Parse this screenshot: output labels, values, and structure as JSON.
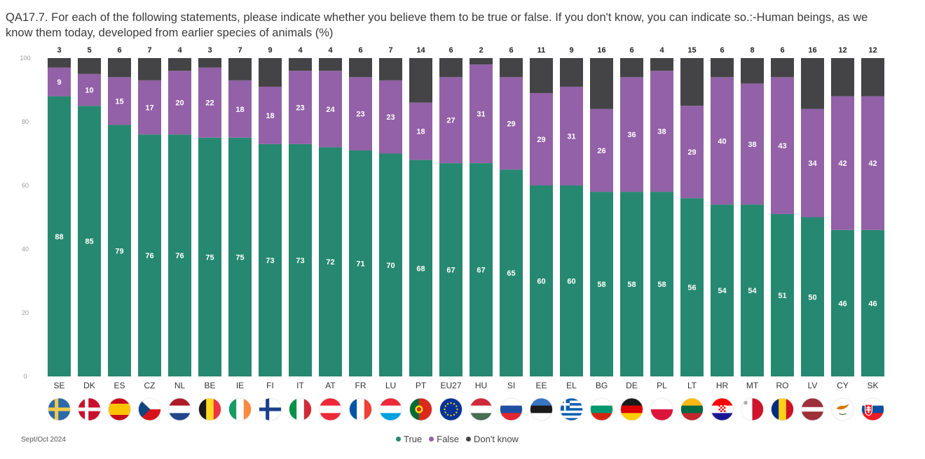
{
  "title": "QA17.7. For each of the following statements, please indicate whether you believe them to be true or false. If you don't know, you can indicate so.:-Human beings, as we know them today, developed from earlier species of animals (%)",
  "footer": {
    "date": "Sept/Oct 2024"
  },
  "colors": {
    "true": "#268870",
    "false": "#9361a7",
    "dont_know": "#444446"
  },
  "legend": [
    {
      "label": "True",
      "color": "#268870"
    },
    {
      "label": "False",
      "color": "#9361a7"
    },
    {
      "label": "Don't know",
      "color": "#444446"
    }
  ],
  "chart_data": {
    "type": "bar",
    "stacked": true,
    "title": "QA17.7. For each of the following statements, please indicate whether you believe them to be true or false. If you don't know, you can indicate so.:-Human beings, as we know them today, developed from earlier species of animals (%)",
    "xlabel": "",
    "ylabel": "",
    "ylim": [
      0,
      100
    ],
    "yticks": [
      0,
      20,
      40,
      60,
      80,
      100
    ],
    "grid": false,
    "legend_position": "bottom",
    "categories": [
      "SE",
      "DK",
      "ES",
      "CZ",
      "NL",
      "BE",
      "IE",
      "FI",
      "IT",
      "AT",
      "FR",
      "LU",
      "PT",
      "EU27",
      "HU",
      "SI",
      "EE",
      "EL",
      "BG",
      "DE",
      "PL",
      "LT",
      "HR",
      "MT",
      "RO",
      "LV",
      "CY",
      "SK"
    ],
    "series": [
      {
        "name": "True",
        "values": [
          88,
          85,
          79,
          76,
          76,
          75,
          75,
          73,
          73,
          72,
          71,
          70,
          68,
          67,
          67,
          65,
          60,
          60,
          58,
          58,
          58,
          56,
          54,
          54,
          51,
          50,
          46,
          46
        ]
      },
      {
        "name": "False",
        "values": [
          9,
          10,
          15,
          17,
          20,
          22,
          18,
          18,
          23,
          24,
          23,
          23,
          18,
          27,
          31,
          29,
          29,
          31,
          26,
          36,
          38,
          29,
          40,
          38,
          43,
          34,
          42,
          42
        ]
      },
      {
        "name": "Don't know",
        "values": [
          3,
          5,
          6,
          7,
          4,
          3,
          7,
          9,
          4,
          4,
          6,
          7,
          14,
          6,
          2,
          6,
          11,
          9,
          16,
          6,
          4,
          15,
          6,
          8,
          6,
          16,
          12,
          12
        ]
      }
    ]
  },
  "flags": {
    "SE": {
      "type": "nordic",
      "bg": "#2b69a8",
      "cross": "#f2c94c"
    },
    "DK": {
      "type": "nordic",
      "bg": "#c8102e",
      "cross": "#ffffff"
    },
    "ES": {
      "type": "h3",
      "colors": [
        "#c60b1e",
        "#ffc400",
        "#c60b1e"
      ],
      "ratio": [
        1,
        2,
        1
      ]
    },
    "CZ": {
      "type": "cz"
    },
    "NL": {
      "type": "h3",
      "colors": [
        "#ae1c28",
        "#ffffff",
        "#21468b"
      ]
    },
    "BE": {
      "type": "v3",
      "colors": [
        "#1a1a1a",
        "#fdda24",
        "#ef3340"
      ]
    },
    "IE": {
      "type": "v3",
      "colors": [
        "#169b62",
        "#ffffff",
        "#ff883e"
      ]
    },
    "FI": {
      "type": "nordic",
      "bg": "#ffffff",
      "cross": "#1b3f8b"
    },
    "IT": {
      "type": "v3",
      "colors": [
        "#009246",
        "#ffffff",
        "#ce2b37"
      ]
    },
    "AT": {
      "type": "h3",
      "colors": [
        "#ed2939",
        "#ffffff",
        "#ed2939"
      ]
    },
    "FR": {
      "type": "v3",
      "colors": [
        "#0055a4",
        "#ffffff",
        "#ef4135"
      ]
    },
    "LU": {
      "type": "h3",
      "colors": [
        "#ed2939",
        "#ffffff",
        "#00a1de"
      ]
    },
    "PT": {
      "type": "pt"
    },
    "EU27": {
      "type": "eu"
    },
    "HU": {
      "type": "h3",
      "colors": [
        "#ce2939",
        "#ffffff",
        "#477050"
      ]
    },
    "SI": {
      "type": "h3",
      "colors": [
        "#ffffff",
        "#1f4fa3",
        "#e3262f"
      ]
    },
    "EE": {
      "type": "h3",
      "colors": [
        "#3a75c4",
        "#1a1a1a",
        "#ffffff"
      ]
    },
    "EL": {
      "type": "gr"
    },
    "BG": {
      "type": "h3",
      "colors": [
        "#ffffff",
        "#00966e",
        "#d62612"
      ]
    },
    "DE": {
      "type": "h3",
      "colors": [
        "#1a1a1a",
        "#dd0000",
        "#ffce00"
      ]
    },
    "PL": {
      "type": "h2",
      "colors": [
        "#ffffff",
        "#dc143c"
      ]
    },
    "LT": {
      "type": "h3",
      "colors": [
        "#fdb913",
        "#006a44",
        "#c1272d"
      ]
    },
    "HR": {
      "type": "hr"
    },
    "MT": {
      "type": "v2",
      "colors": [
        "#ffffff",
        "#cf142b"
      ]
    },
    "RO": {
      "type": "v3",
      "colors": [
        "#002b7f",
        "#fcd116",
        "#ce1126"
      ]
    },
    "LV": {
      "type": "h3",
      "colors": [
        "#9e3039",
        "#ffffff",
        "#9e3039"
      ],
      "ratio": [
        2,
        1,
        2
      ]
    },
    "CY": {
      "type": "cy"
    },
    "SK": {
      "type": "sk"
    }
  }
}
